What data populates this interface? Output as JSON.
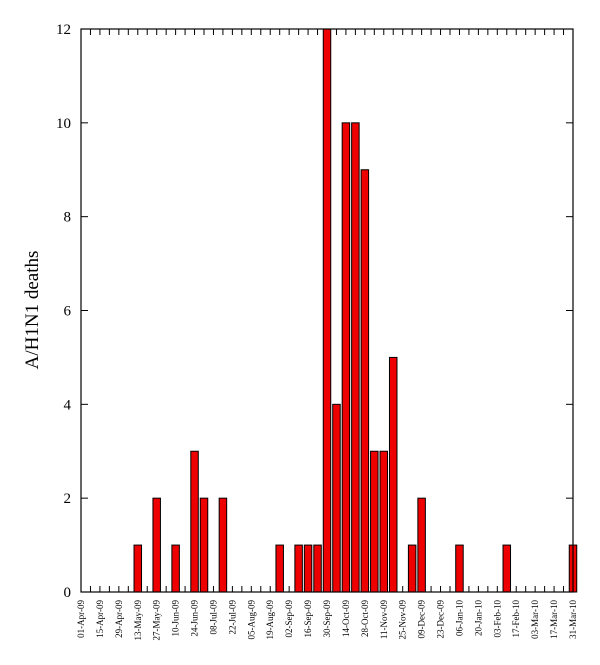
{
  "chart_data": {
    "type": "bar",
    "ylabel": "A/H1N1 deaths",
    "ylim": [
      0,
      12
    ],
    "y_ticks": [
      0,
      2,
      4,
      6,
      8,
      10,
      12
    ],
    "x_tick_labels": [
      "01-Apr-09",
      "15-Apr-09",
      "29-Apr-09",
      "13-May-09",
      "27-May-09",
      "10-Jun-09",
      "24-Jun-09",
      "08-Jul-09",
      "22-Jul-09",
      "05-Aug-09",
      "19-Aug-09",
      "02-Sep-09",
      "16-Sep-09",
      "30-Sep-09",
      "14-Oct-09",
      "28-Oct-09",
      "11-Nov-09",
      "25-Nov-09",
      "09-Dec-09",
      "23-Dec-09",
      "06-Jan-10",
      "20-Jan-10",
      "03-Feb-10",
      "17-Feb-10",
      "03-Mar-10",
      "17-Mar-10",
      "31-Mar-10"
    ],
    "x_start": "2009-04-01",
    "x_end": "2010-03-31",
    "bar_color": "#ee0000",
    "grid": false,
    "bars": [
      {
        "date": "2009-05-13",
        "value": 1
      },
      {
        "date": "2009-05-27",
        "value": 2
      },
      {
        "date": "2009-06-10",
        "value": 1
      },
      {
        "date": "2009-06-24",
        "value": 3
      },
      {
        "date": "2009-07-01",
        "value": 2
      },
      {
        "date": "2009-07-15",
        "value": 2
      },
      {
        "date": "2009-08-26",
        "value": 1
      },
      {
        "date": "2009-09-09",
        "value": 1
      },
      {
        "date": "2009-09-16",
        "value": 1
      },
      {
        "date": "2009-09-23",
        "value": 1
      },
      {
        "date": "2009-09-30",
        "value": 12
      },
      {
        "date": "2009-10-07",
        "value": 4
      },
      {
        "date": "2009-10-14",
        "value": 10
      },
      {
        "date": "2009-10-21",
        "value": 10
      },
      {
        "date": "2009-10-28",
        "value": 9
      },
      {
        "date": "2009-11-04",
        "value": 3
      },
      {
        "date": "2009-11-11",
        "value": 3
      },
      {
        "date": "2009-11-18",
        "value": 5
      },
      {
        "date": "2009-12-02",
        "value": 1
      },
      {
        "date": "2009-12-09",
        "value": 2
      },
      {
        "date": "2010-01-06",
        "value": 1
      },
      {
        "date": "2010-02-10",
        "value": 1
      },
      {
        "date": "2010-03-31",
        "value": 1
      }
    ]
  }
}
